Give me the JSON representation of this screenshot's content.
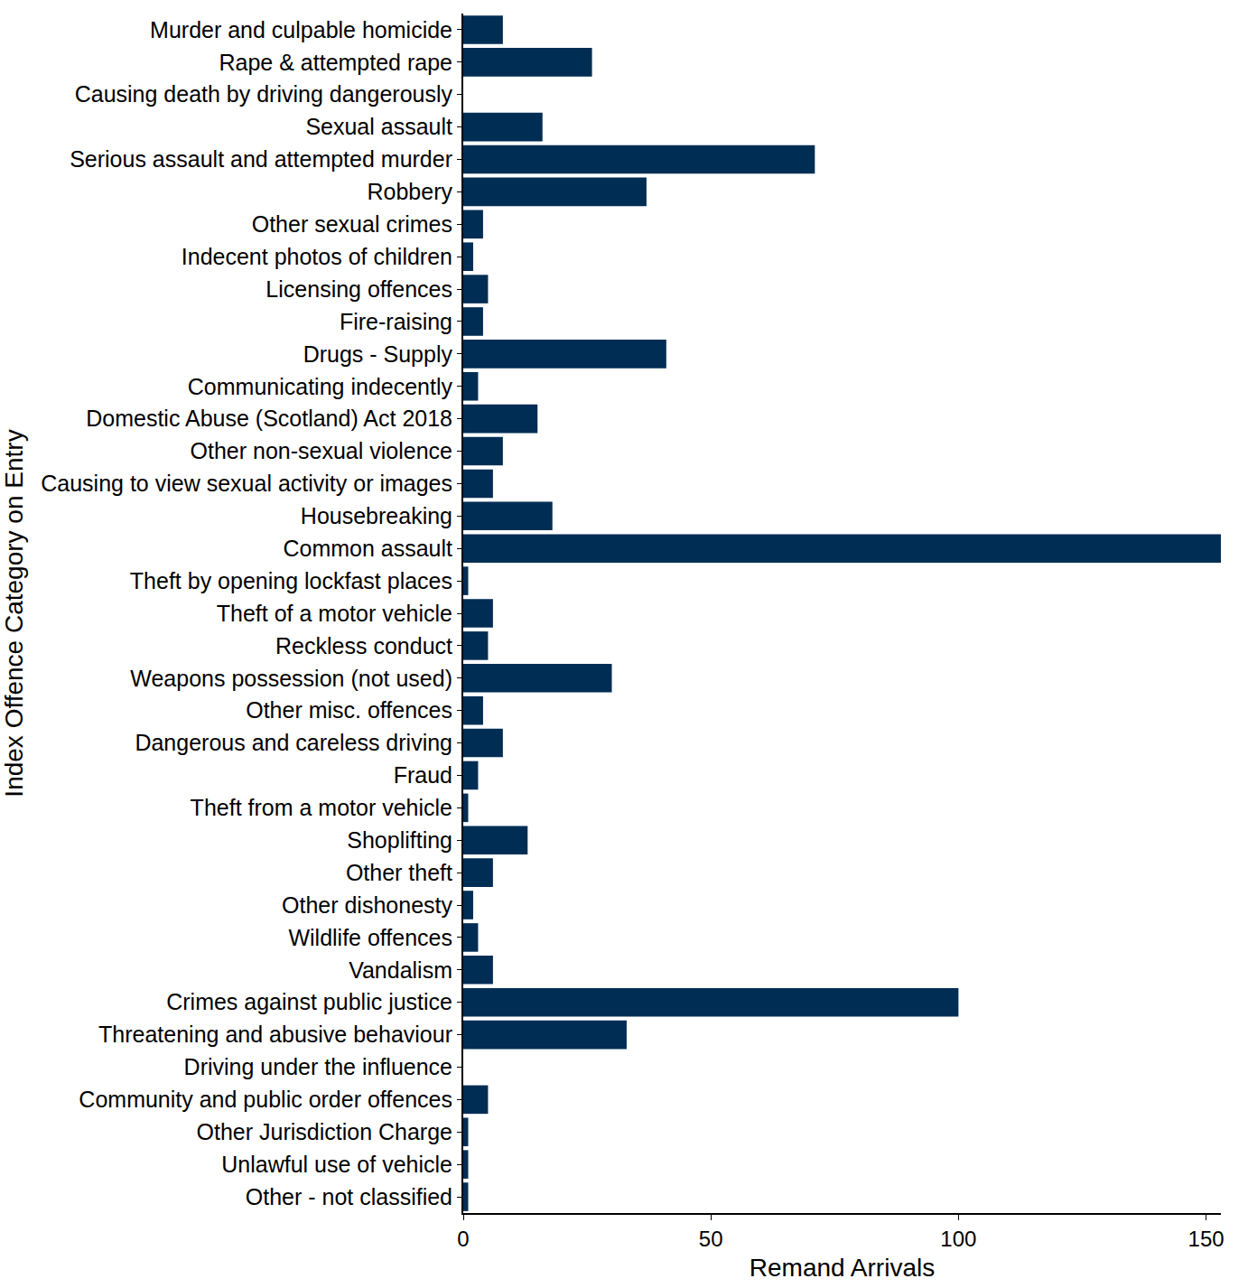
{
  "chart_data": {
    "type": "bar",
    "orientation": "horizontal",
    "x_label": "Remand Arrivals",
    "y_label": "Index Offence Category on Entry",
    "categories": [
      "Murder and culpable homicide",
      "Rape & attempted rape",
      "Causing death by driving dangerously",
      "Sexual assault",
      "Serious assault and attempted murder",
      "Robbery",
      "Other sexual crimes",
      "Indecent photos of children",
      "Licensing offences",
      "Fire-raising",
      "Drugs - Supply",
      "Communicating indecently",
      "Domestic Abuse (Scotland) Act 2018",
      "Other non-sexual violence",
      "Causing to view sexual activity or images",
      "Housebreaking",
      "Common assault",
      "Theft by opening lockfast places",
      "Theft of a motor vehicle",
      "Reckless conduct",
      "Weapons possession (not used)",
      "Other misc. offences",
      "Dangerous and careless driving",
      "Fraud",
      "Theft from a motor vehicle",
      "Shoplifting",
      "Other theft",
      "Other dishonesty",
      "Wildlife offences",
      "Vandalism",
      "Crimes against public justice",
      "Threatening and abusive behaviour",
      "Driving under the influence",
      "Community and public order offences",
      "Other Jurisdiction Charge",
      "Unlawful use of vehicle",
      "Other - not classified"
    ],
    "values": [
      8,
      26,
      0,
      16,
      71,
      37,
      4,
      2,
      5,
      4,
      41,
      3,
      15,
      8,
      6,
      18,
      153,
      1,
      6,
      5,
      30,
      4,
      8,
      3,
      1,
      13,
      6,
      2,
      3,
      6,
      100,
      33,
      0,
      5,
      1,
      1,
      1
    ],
    "color": "#002d54",
    "xlim": [
      0,
      153
    ],
    "xticks": [
      0,
      50,
      100,
      150
    ],
    "grid": false
  }
}
